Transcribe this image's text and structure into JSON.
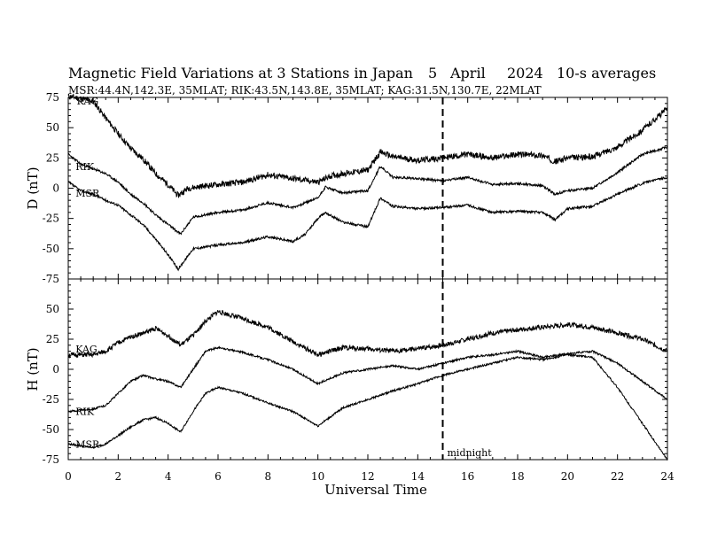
{
  "chart_data": {
    "type": "line",
    "title": "Magnetic Field Variations at 3 Stations in Japan",
    "date": {
      "day": "5",
      "month": "April",
      "year": "2024"
    },
    "averaging": "10-s averages",
    "stations_line": "MSR:44.4N,142.3E, 35MLAT;  RIK:43.5N,143.8E, 35MLAT;  KAG:31.5N,130.7E, 22MLAT",
    "xlabel": "Universal Time",
    "xlim": [
      0,
      24
    ],
    "xticks": [
      0,
      2,
      4,
      6,
      8,
      10,
      12,
      14,
      16,
      18,
      20,
      22,
      24
    ],
    "midnight": {
      "x": 15,
      "label": "midnight"
    },
    "grid": false,
    "panels": [
      {
        "id": "D",
        "ylabel": "D (nT)",
        "ylim": [
          -75,
          75
        ],
        "yticks": [
          75,
          50,
          25,
          0,
          -25,
          -50,
          -75
        ],
        "series": [
          {
            "name": "KAG",
            "label": "KAG",
            "label_at": [
              0.2,
              72
            ],
            "noise": 2.5,
            "seed": 11,
            "points": [
              [
                0,
                76
              ],
              [
                0.5,
                74
              ],
              [
                1,
                72
              ],
              [
                1.5,
                58
              ],
              [
                2,
                45
              ],
              [
                2.5,
                33
              ],
              [
                3,
                24
              ],
              [
                3.5,
                12
              ],
              [
                4,
                3
              ],
              [
                4.4,
                -6
              ],
              [
                4.8,
                0
              ],
              [
                5.5,
                2
              ],
              [
                6.5,
                4
              ],
              [
                7,
                5
              ],
              [
                8,
                11
              ],
              [
                9,
                8
              ],
              [
                10,
                5
              ],
              [
                10.5,
                10
              ],
              [
                11,
                12
              ],
              [
                12,
                15
              ],
              [
                12.5,
                30
              ],
              [
                13,
                26
              ],
              [
                14,
                23
              ],
              [
                15,
                25
              ],
              [
                16,
                28
              ],
              [
                17,
                25
              ],
              [
                18,
                28
              ],
              [
                19,
                27
              ],
              [
                19.5,
                22
              ],
              [
                20,
                25
              ],
              [
                21,
                26
              ],
              [
                22,
                34
              ],
              [
                23,
                48
              ],
              [
                24,
                66
              ]
            ]
          },
          {
            "name": "RIK",
            "label": "RIK",
            "label_at": [
              0.15,
              18
            ],
            "noise": 1.0,
            "seed": 23,
            "points": [
              [
                0,
                28
              ],
              [
                0.5,
                20
              ],
              [
                1,
                16
              ],
              [
                1.5,
                12
              ],
              [
                2,
                5
              ],
              [
                2.5,
                -5
              ],
              [
                3,
                -12
              ],
              [
                3.5,
                -22
              ],
              [
                4,
                -30
              ],
              [
                4.5,
                -38
              ],
              [
                5,
                -24
              ],
              [
                6,
                -20
              ],
              [
                7,
                -18
              ],
              [
                8,
                -12
              ],
              [
                9,
                -16
              ],
              [
                10,
                -8
              ],
              [
                10.3,
                1
              ],
              [
                11,
                -4
              ],
              [
                12,
                -2
              ],
              [
                12.5,
                18
              ],
              [
                13,
                9
              ],
              [
                14,
                8
              ],
              [
                15,
                6
              ],
              [
                16,
                9
              ],
              [
                17,
                3
              ],
              [
                18,
                4
              ],
              [
                19,
                2
              ],
              [
                19.5,
                -5
              ],
              [
                20,
                -2
              ],
              [
                21,
                0
              ],
              [
                22,
                13
              ],
              [
                23,
                28
              ],
              [
                24,
                34
              ]
            ]
          },
          {
            "name": "MSR",
            "label": "MSR",
            "label_at": [
              0.15,
              -4
            ],
            "noise": 1.0,
            "seed": 37,
            "points": [
              [
                0,
                5
              ],
              [
                0.5,
                -2
              ],
              [
                1,
                -5
              ],
              [
                1.5,
                -10
              ],
              [
                2,
                -14
              ],
              [
                2.5,
                -22
              ],
              [
                3,
                -30
              ],
              [
                3.5,
                -42
              ],
              [
                4,
                -55
              ],
              [
                4.4,
                -67
              ],
              [
                5,
                -50
              ],
              [
                6,
                -47
              ],
              [
                7,
                -45
              ],
              [
                8,
                -40
              ],
              [
                9,
                -44
              ],
              [
                9.5,
                -38
              ],
              [
                10,
                -25
              ],
              [
                10.3,
                -20
              ],
              [
                11,
                -28
              ],
              [
                12,
                -32
              ],
              [
                12.5,
                -8
              ],
              [
                13,
                -15
              ],
              [
                14,
                -17
              ],
              [
                15,
                -16
              ],
              [
                16,
                -14
              ],
              [
                17,
                -20
              ],
              [
                18,
                -19
              ],
              [
                19,
                -20
              ],
              [
                19.5,
                -26
              ],
              [
                20,
                -17
              ],
              [
                21,
                -15
              ],
              [
                22,
                -5
              ],
              [
                23,
                4
              ],
              [
                24,
                9
              ]
            ]
          }
        ]
      },
      {
        "id": "H",
        "ylabel": "H (nT)",
        "ylim": [
          -75,
          75
        ],
        "yticks": [
          50,
          25,
          0,
          -25,
          -50,
          -75
        ],
        "series": [
          {
            "name": "KAG",
            "label": "KAG",
            "label_at": [
              0.15,
              17
            ],
            "noise": 2.0,
            "seed": 51,
            "points": [
              [
                0,
                12
              ],
              [
                1,
                12
              ],
              [
                1.5,
                15
              ],
              [
                2,
                22
              ],
              [
                2.5,
                27
              ],
              [
                3,
                30
              ],
              [
                3.5,
                34
              ],
              [
                4,
                28
              ],
              [
                4.5,
                20
              ],
              [
                5,
                28
              ],
              [
                5.5,
                40
              ],
              [
                6,
                48
              ],
              [
                7,
                42
              ],
              [
                8,
                35
              ],
              [
                9,
                23
              ],
              [
                10,
                12
              ],
              [
                11,
                18
              ],
              [
                12,
                17
              ],
              [
                13,
                15
              ],
              [
                14,
                17
              ],
              [
                15,
                20
              ],
              [
                16,
                25
              ],
              [
                17,
                30
              ],
              [
                18,
                33
              ],
              [
                19,
                35
              ],
              [
                20,
                37
              ],
              [
                21,
                35
              ],
              [
                22,
                30
              ],
              [
                23,
                25
              ],
              [
                24,
                15
              ]
            ]
          },
          {
            "name": "RIK",
            "label": "RIK",
            "label_at": [
              0.15,
              -35
            ],
            "noise": 0.8,
            "seed": 63,
            "points": [
              [
                0,
                -35
              ],
              [
                1,
                -33
              ],
              [
                1.5,
                -30
              ],
              [
                2,
                -20
              ],
              [
                2.5,
                -10
              ],
              [
                3,
                -5
              ],
              [
                3.5,
                -8
              ],
              [
                4,
                -10
              ],
              [
                4.5,
                -15
              ],
              [
                5,
                0
              ],
              [
                5.5,
                15
              ],
              [
                6,
                18
              ],
              [
                7,
                14
              ],
              [
                8,
                8
              ],
              [
                9,
                0
              ],
              [
                10,
                -12
              ],
              [
                11,
                -3
              ],
              [
                12,
                0
              ],
              [
                13,
                3
              ],
              [
                14,
                0
              ],
              [
                15,
                5
              ],
              [
                16,
                10
              ],
              [
                17,
                12
              ],
              [
                18,
                15
              ],
              [
                19,
                10
              ],
              [
                20,
                13
              ],
              [
                21,
                15
              ],
              [
                22,
                5
              ],
              [
                23,
                -10
              ],
              [
                24,
                -25
              ]
            ]
          },
          {
            "name": "MSR",
            "label": "MSR",
            "label_at": [
              0.15,
              -62
            ],
            "noise": 0.8,
            "seed": 79,
            "points": [
              [
                0,
                -62
              ],
              [
                1,
                -65
              ],
              [
                1.5,
                -62
              ],
              [
                2,
                -55
              ],
              [
                2.5,
                -48
              ],
              [
                3,
                -42
              ],
              [
                3.5,
                -40
              ],
              [
                4,
                -45
              ],
              [
                4.5,
                -52
              ],
              [
                5,
                -35
              ],
              [
                5.5,
                -20
              ],
              [
                6,
                -15
              ],
              [
                7,
                -20
              ],
              [
                8,
                -28
              ],
              [
                9,
                -35
              ],
              [
                10,
                -47
              ],
              [
                11,
                -32
              ],
              [
                12,
                -25
              ],
              [
                13,
                -18
              ],
              [
                14,
                -12
              ],
              [
                15,
                -5
              ],
              [
                16,
                0
              ],
              [
                17,
                5
              ],
              [
                18,
                10
              ],
              [
                19,
                8
              ],
              [
                20,
                12
              ],
              [
                21,
                10
              ],
              [
                22,
                -15
              ],
              [
                23,
                -45
              ],
              [
                24,
                -75
              ]
            ]
          }
        ]
      }
    ]
  }
}
